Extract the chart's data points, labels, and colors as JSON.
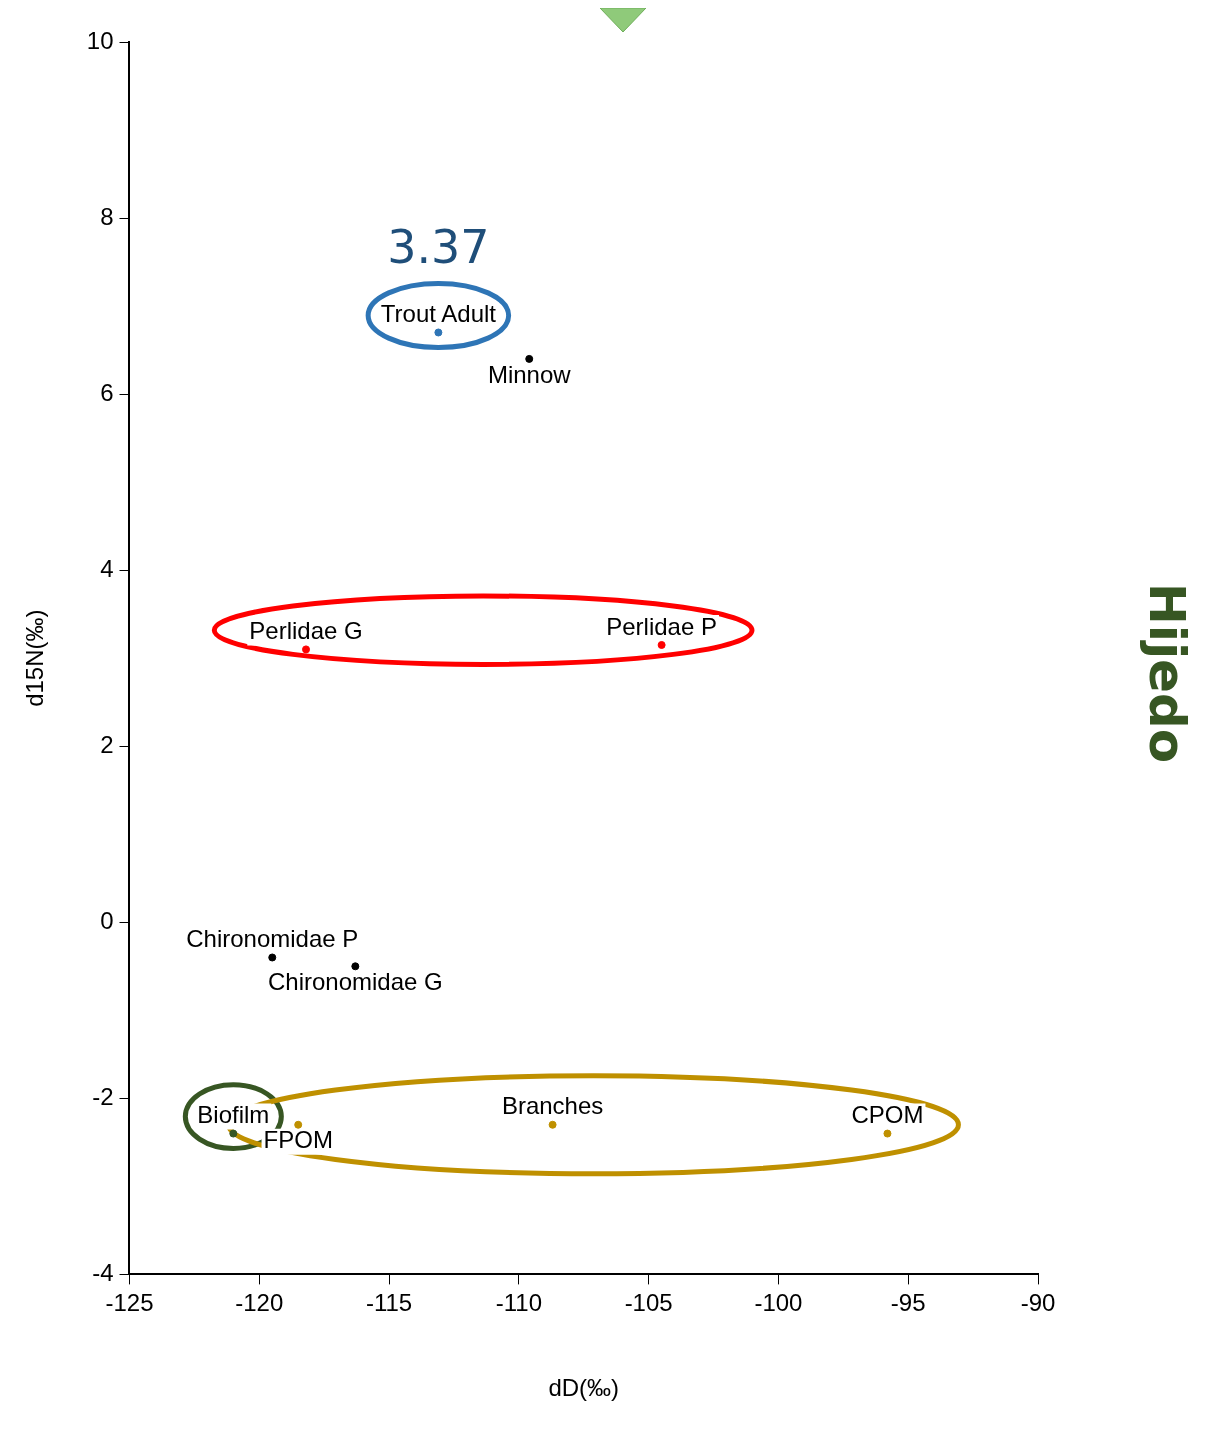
{
  "chart_data": {
    "type": "scatter",
    "title": "Hijedo",
    "xlabel": "dD(‰)",
    "ylabel": "d15N(‰)",
    "xlim": [
      -125,
      -90
    ],
    "ylim": [
      -4,
      10
    ],
    "xticks": [
      -125,
      -120,
      -115,
      -110,
      -105,
      -100,
      -95,
      -90
    ],
    "yticks": [
      -4,
      -2,
      0,
      2,
      4,
      6,
      8,
      10
    ],
    "grid": false,
    "legend": false,
    "marker": "circle",
    "series": [
      {
        "color": "#2e75b6",
        "x": [
          -113.1
        ],
        "values": [
          6.7
        ],
        "value_labels": [
          "Trout Adult"
        ]
      },
      {
        "x": [
          -109.6,
          -119.5,
          -116.3
        ],
        "values": [
          6.4,
          -0.4,
          -0.5
        ],
        "value_labels": [
          "Minnow",
          "Chironomidae P",
          "Chironomidae G"
        ]
      },
      {
        "color": "#ff0000",
        "x": [
          -118.2,
          -104.5
        ],
        "values": [
          3.1,
          3.15
        ],
        "value_labels": [
          "Perlidae G",
          "Perlidae P"
        ]
      },
      {
        "color": "#375623",
        "x": [
          -121.0
        ],
        "values": [
          -2.4
        ],
        "value_labels": [
          "Biofilm"
        ]
      },
      {
        "color": "#bf9000",
        "x": [
          -118.5,
          -108.7,
          -95.8
        ],
        "values": [
          -2.3,
          -2.3,
          -2.4
        ],
        "value_labels": [
          "FPOM",
          "Branches",
          "CPOM"
        ]
      }
    ],
    "annotations": [
      "3.37"
    ]
  }
}
